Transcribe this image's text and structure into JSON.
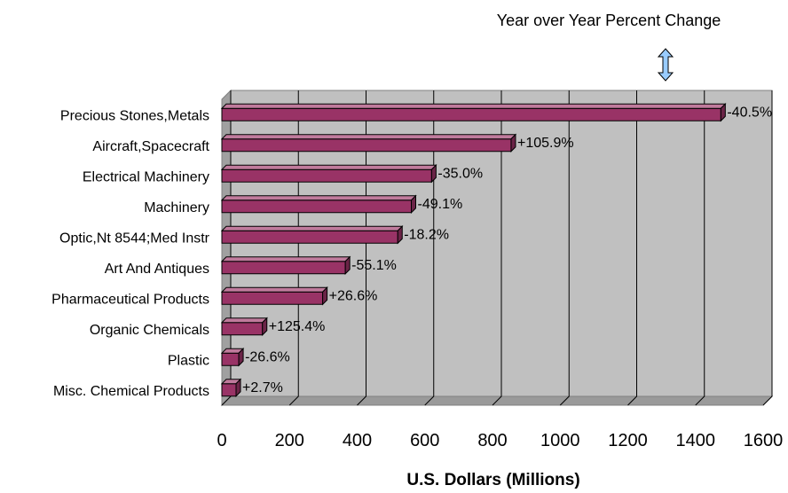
{
  "chart_data": {
    "type": "bar",
    "orientation": "horizontal",
    "categories": [
      "Precious Stones,Metals",
      "Aircraft,Spacecraft",
      "Electrical Machinery",
      "Machinery",
      "Optic,Nt 8544;Med Instr",
      "Art And Antiques",
      "Pharmaceutical Products",
      "Organic Chemicals",
      "Plastic",
      "Misc. Chemical Products"
    ],
    "values": [
      1475,
      855,
      620,
      560,
      520,
      365,
      298,
      120,
      50,
      42
    ],
    "data_labels": [
      "-40.5%",
      "+105.9%",
      "-35.0%",
      "-49.1%",
      "-18.2%",
      "-55.1%",
      "+26.6%",
      "+125.4%",
      "-26.6%",
      "+2.7%"
    ],
    "xlabel": "U.S. Dollars (Millions)",
    "xlim": [
      0,
      1600
    ],
    "xticks": [
      0,
      200,
      400,
      600,
      800,
      1000,
      1200,
      1400,
      1600
    ],
    "grid": true,
    "annotation": "Year over Year Percent Change",
    "bar_color": "#993366",
    "plot_background": "#c0c0c0"
  }
}
